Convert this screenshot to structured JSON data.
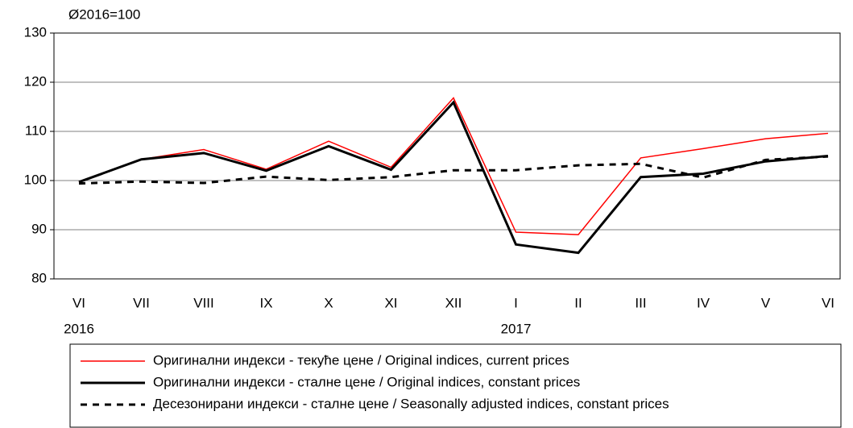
{
  "chart_data": {
    "type": "line",
    "subtitle": "Ø2016=100",
    "categories": [
      "VI",
      "VII",
      "VIII",
      "IX",
      "X",
      "XI",
      "XII",
      "I",
      "II",
      "III",
      "IV",
      "V",
      "VI"
    ],
    "x_groups": [
      {
        "label": "2016",
        "start": 0
      },
      {
        "label": "2017",
        "start": 7
      }
    ],
    "series": [
      {
        "name": "Оригинални индекси - текуће цене / Original indices, current prices",
        "color": "#ff0000",
        "style": "solid",
        "width": 1.5,
        "values": [
          99.7,
          104.3,
          106.3,
          102.3,
          108,
          102.7,
          116.8,
          89.5,
          89,
          104.6,
          106.5,
          108.5,
          109.6
        ]
      },
      {
        "name": "Оригинални индекси - сталне цене / Original indices, constant prices",
        "color": "#000000",
        "style": "solid",
        "width": 3,
        "values": [
          99.7,
          104.3,
          105.6,
          102,
          107,
          102.2,
          115.9,
          87,
          85.3,
          100.7,
          101.4,
          103.9,
          105
        ]
      },
      {
        "name": "Десезонирани индекси - сталне цене / Seasonally adjusted indices, constant prices",
        "color": "#000000",
        "style": "dashed",
        "width": 3,
        "values": [
          99.4,
          99.8,
          99.5,
          100.8,
          100.1,
          100.7,
          102.1,
          102.1,
          103.1,
          103.4,
          100.6,
          104.2,
          104.9
        ]
      }
    ],
    "ylim": [
      80,
      130
    ],
    "yticks": [
      80,
      90,
      100,
      110,
      120,
      130
    ],
    "grid": true,
    "legend": "bottom"
  }
}
